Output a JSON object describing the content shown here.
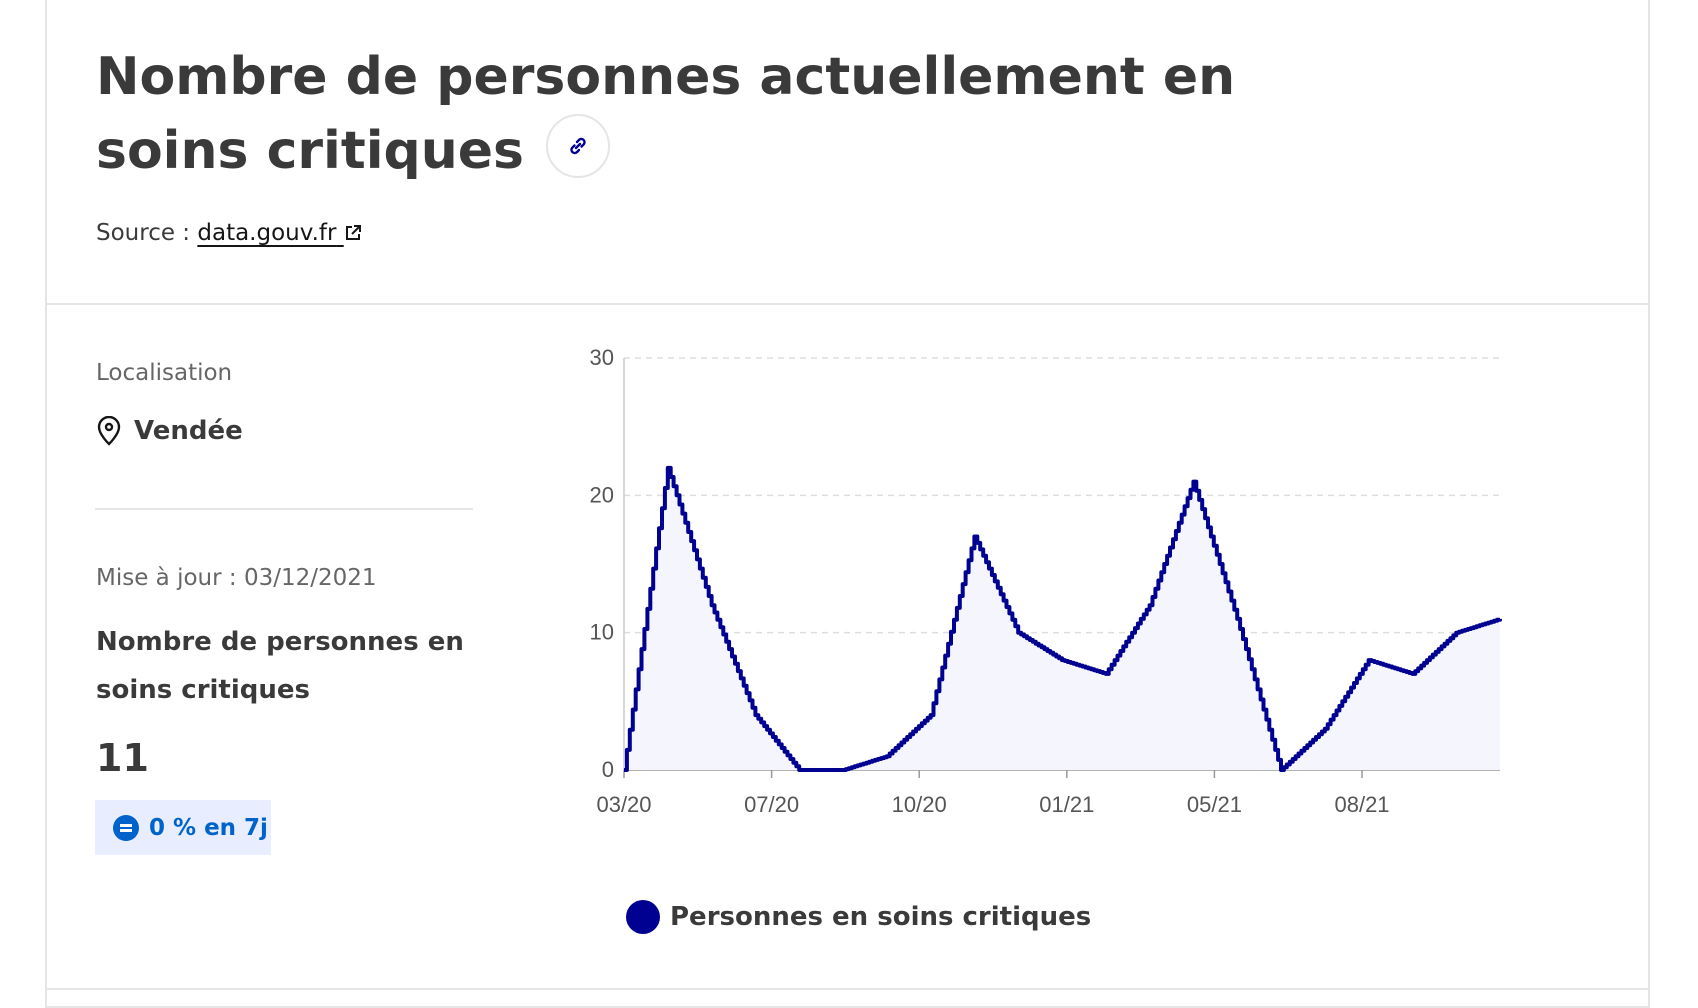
{
  "header": {
    "title": "Nombre de personnes actuellement en soins critiques",
    "source_prefix": "Source :",
    "source_link": "data.gouv.fr",
    "link_icon": "link-icon",
    "external_icon": "external-link-icon"
  },
  "sidebar": {
    "localisation_label": "Localisation",
    "location_icon": "map-pin-icon",
    "location_value": "Vendée",
    "update_text": "Mise à jour : 03/12/2021",
    "metric_label": "Nombre de personnes en soins critiques",
    "metric_value": "11",
    "badge_icon": "equal-icon",
    "badge_text": "0 % en 7j"
  },
  "colors": {
    "series": "#000091",
    "area_fill": "#f5f5fe",
    "grid": "#dddddd",
    "badge_bg": "#e8edff",
    "badge_text": "#0063cb"
  },
  "chart_data": {
    "type": "line",
    "title": "",
    "xlabel": "",
    "ylabel": "",
    "ylim": [
      0,
      30
    ],
    "yticks": [
      "0",
      "10",
      "20",
      "30"
    ],
    "xticks": [
      "03/20",
      "07/20",
      "10/20",
      "01/21",
      "05/21",
      "08/21"
    ],
    "grid": true,
    "legend_position": "bottom",
    "series": [
      {
        "name": "Personnes en soins critiques",
        "x": [
          "03/20",
          "04/20",
          "05/20",
          "06/20",
          "07/20",
          "08/20",
          "09/20",
          "10/20",
          "11/20",
          "12/20",
          "01/21",
          "02/21",
          "03/21",
          "04/21",
          "05/21",
          "06/21",
          "07/21",
          "08/21",
          "09/21",
          "10/21",
          "11/21"
        ],
        "values": [
          0,
          22,
          12,
          4,
          0,
          0,
          1,
          4,
          17,
          10,
          8,
          7,
          12,
          21,
          11,
          0,
          3,
          8,
          7,
          10,
          11
        ]
      }
    ]
  }
}
